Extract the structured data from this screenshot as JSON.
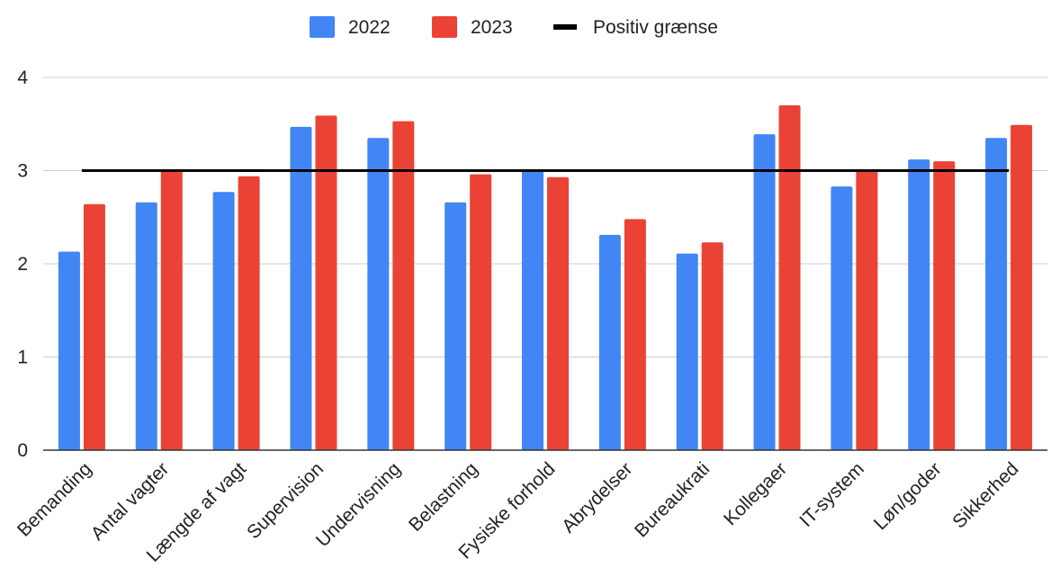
{
  "chart_data": {
    "type": "bar",
    "title": "",
    "xlabel": "",
    "ylabel": "",
    "ylim": [
      0,
      4
    ],
    "yticks": [
      0,
      1,
      2,
      3,
      4
    ],
    "grid": true,
    "legend_position": "top",
    "categories": [
      "Bemanding",
      "Antal vagter",
      "Længde af vagt",
      "Supervision",
      "Undervisning",
      "Belastning",
      "Fysiske forhold",
      "Abrydelser",
      "Bureaukrati",
      "Kollegaer",
      "IT-system",
      "Løn/goder",
      "Sikkerhed"
    ],
    "series": [
      {
        "name": "2022",
        "color": "#4285f4",
        "values": [
          2.13,
          2.66,
          2.77,
          3.47,
          3.35,
          2.66,
          3.0,
          2.31,
          2.11,
          3.39,
          2.83,
          3.12,
          3.35
        ]
      },
      {
        "name": "2023",
        "color": "#ea4335",
        "values": [
          2.64,
          3.0,
          2.94,
          3.59,
          3.53,
          2.96,
          2.93,
          2.48,
          2.23,
          3.7,
          3.0,
          3.1,
          3.49
        ]
      }
    ],
    "reference_line": {
      "name": "Positiv grænse",
      "value": 3,
      "color": "#000000"
    }
  }
}
